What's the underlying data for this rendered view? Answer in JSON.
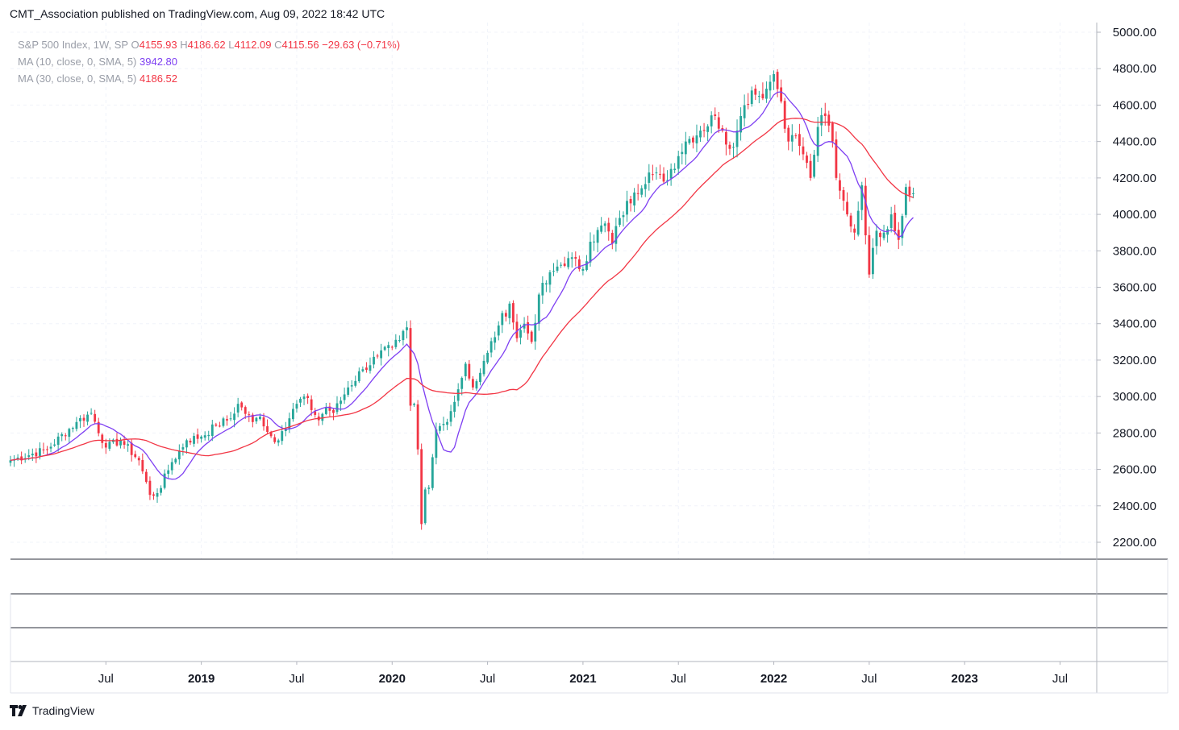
{
  "header": {
    "publisher_line": "CMT_Association published on TradingView.com, Aug 09, 2022 18:42 UTC"
  },
  "legend": {
    "symbol": "S&P 500 Index, 1W, SP",
    "o_key": "O",
    "o": "4155.93",
    "h_key": "H",
    "h": "4186.62",
    "l_key": "L",
    "l": "4112.09",
    "c_key": "C",
    "c": "4115.56",
    "change": "−29.63 (−0.71%)",
    "ma10_label": "MA (10, close, 0, SMA, 5)",
    "ma10_value": "3942.80",
    "ma30_label": "MA (30, close, 0, SMA, 5)",
    "ma30_value": "4186.52"
  },
  "footer": {
    "brand": "TradingView"
  },
  "colors": {
    "up": "#26a69a",
    "down": "#f23645",
    "ma10": "#7e3ff2",
    "ma30": "#f23645",
    "grid": "#f0f3fa"
  },
  "chart_data": {
    "type": "candlestick",
    "title": "S&P 500 Index, 1W, SP",
    "ylim": [
      2200,
      5000
    ],
    "y_ticks": [
      "5000.00",
      "4800.00",
      "4600.00",
      "4400.00",
      "4200.00",
      "4000.00",
      "3800.00",
      "3600.00",
      "3400.00",
      "3200.00",
      "3000.00",
      "2800.00",
      "2600.00",
      "2400.00",
      "2200.00"
    ],
    "x_ticks": [
      {
        "label": "Jul",
        "t": 26,
        "bold": false
      },
      {
        "label": "2019",
        "t": 52,
        "bold": true
      },
      {
        "label": "Jul",
        "t": 78,
        "bold": false
      },
      {
        "label": "2020",
        "t": 104,
        "bold": true
      },
      {
        "label": "Jul",
        "t": 130,
        "bold": false
      },
      {
        "label": "2021",
        "t": 156,
        "bold": true
      },
      {
        "label": "Jul",
        "t": 182,
        "bold": false
      },
      {
        "label": "2022",
        "t": 208,
        "bold": true
      },
      {
        "label": "Jul",
        "t": 234,
        "bold": false
      },
      {
        "label": "2023",
        "t": 260,
        "bold": true
      },
      {
        "label": "Jul",
        "t": 286,
        "bold": false
      }
    ],
    "x_range_weeks": [
      0,
      296
    ],
    "last_week_index": 240,
    "close_keypoints": [
      [
        0,
        2650
      ],
      [
        10,
        2710
      ],
      [
        18,
        2860
      ],
      [
        22,
        2910
      ],
      [
        26,
        2720
      ],
      [
        30,
        2760
      ],
      [
        35,
        2650
      ],
      [
        38,
        2460
      ],
      [
        40,
        2470
      ],
      [
        44,
        2640
      ],
      [
        48,
        2760
      ],
      [
        52,
        2780
      ],
      [
        56,
        2840
      ],
      [
        60,
        2880
      ],
      [
        62,
        2960
      ],
      [
        66,
        2860
      ],
      [
        68,
        2890
      ],
      [
        72,
        2750
      ],
      [
        74,
        2810
      ],
      [
        78,
        2960
      ],
      [
        80,
        3000
      ],
      [
        84,
        2870
      ],
      [
        86,
        2940
      ],
      [
        88,
        2910
      ],
      [
        92,
        3050
      ],
      [
        96,
        3150
      ],
      [
        100,
        3220
      ],
      [
        104,
        3270
      ],
      [
        106,
        3310
      ],
      [
        108,
        3380
      ],
      [
        109,
        2950
      ],
      [
        110,
        2960
      ],
      [
        111,
        2710
      ],
      [
        112,
        2300
      ],
      [
        113,
        2490
      ],
      [
        114,
        2500
      ],
      [
        116,
        2820
      ],
      [
        118,
        2850
      ],
      [
        120,
        2920
      ],
      [
        122,
        3040
      ],
      [
        124,
        3180
      ],
      [
        126,
        3050
      ],
      [
        128,
        3130
      ],
      [
        130,
        3240
      ],
      [
        133,
        3390
      ],
      [
        136,
        3510
      ],
      [
        138,
        3320
      ],
      [
        140,
        3400
      ],
      [
        142,
        3300
      ],
      [
        144,
        3560
      ],
      [
        148,
        3690
      ],
      [
        152,
        3760
      ],
      [
        156,
        3700
      ],
      [
        158,
        3850
      ],
      [
        162,
        3950
      ],
      [
        164,
        3840
      ],
      [
        166,
        3980
      ],
      [
        170,
        4120
      ],
      [
        174,
        4230
      ],
      [
        178,
        4180
      ],
      [
        182,
        4320
      ],
      [
        184,
        4400
      ],
      [
        188,
        4460
      ],
      [
        192,
        4540
      ],
      [
        194,
        4460
      ],
      [
        196,
        4360
      ],
      [
        198,
        4460
      ],
      [
        200,
        4600
      ],
      [
        202,
        4680
      ],
      [
        204,
        4650
      ],
      [
        206,
        4690
      ],
      [
        208,
        4770
      ],
      [
        210,
        4620
      ],
      [
        212,
        4400
      ],
      [
        214,
        4430
      ],
      [
        216,
        4330
      ],
      [
        218,
        4200
      ],
      [
        220,
        4480
      ],
      [
        222,
        4540
      ],
      [
        224,
        4400
      ],
      [
        225,
        4200
      ],
      [
        226,
        4130
      ],
      [
        228,
        4000
      ],
      [
        230,
        3900
      ],
      [
        232,
        4160
      ],
      [
        234,
        3670
      ],
      [
        236,
        3910
      ],
      [
        238,
        3900
      ],
      [
        240,
        4000
      ],
      [
        242,
        3860
      ],
      [
        244,
        4150
      ],
      [
        246,
        4130
      ]
    ],
    "sma_periods": [
      10,
      30
    ],
    "last_close": 4115.56
  }
}
